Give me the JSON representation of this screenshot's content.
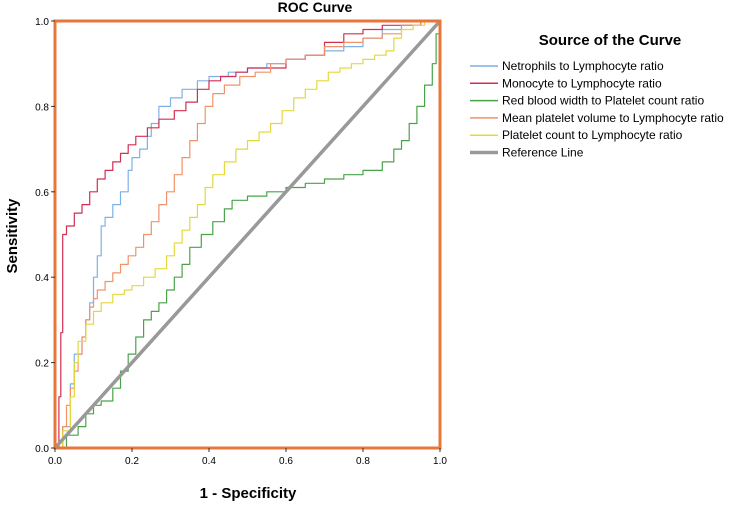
{
  "chart_data": {
    "type": "line",
    "title": "ROC Curve",
    "xlabel": "1 - Specificity",
    "ylabel": "Sensitivity",
    "xlim": [
      0,
      1
    ],
    "ylim": [
      0,
      1
    ],
    "x_ticks": [
      "0.0",
      "0.2",
      "0.4",
      "0.6",
      "0.8",
      "1.0"
    ],
    "y_ticks": [
      "0.0",
      "0.2",
      "0.4",
      "0.6",
      "0.8",
      "1.0"
    ],
    "grid": false,
    "frame_color": "#e8763a",
    "legend": {
      "title": "Source of the Curve",
      "position": "right"
    },
    "series": [
      {
        "name": "Netrophils to Lymphocyte ratio",
        "color": "#7fb0e8",
        "points": [
          [
            0,
            0
          ],
          [
            0.02,
            0.05
          ],
          [
            0.04,
            0.15
          ],
          [
            0.05,
            0.22
          ],
          [
            0.07,
            0.26
          ],
          [
            0.08,
            0.3
          ],
          [
            0.09,
            0.34
          ],
          [
            0.1,
            0.4
          ],
          [
            0.11,
            0.45
          ],
          [
            0.12,
            0.52
          ],
          [
            0.13,
            0.54
          ],
          [
            0.15,
            0.57
          ],
          [
            0.17,
            0.6
          ],
          [
            0.19,
            0.65
          ],
          [
            0.2,
            0.68
          ],
          [
            0.22,
            0.7
          ],
          [
            0.24,
            0.73
          ],
          [
            0.25,
            0.76
          ],
          [
            0.27,
            0.8
          ],
          [
            0.3,
            0.82
          ],
          [
            0.33,
            0.84
          ],
          [
            0.37,
            0.86
          ],
          [
            0.4,
            0.87
          ],
          [
            0.45,
            0.88
          ],
          [
            0.5,
            0.89
          ],
          [
            0.55,
            0.9
          ],
          [
            0.6,
            0.91
          ],
          [
            0.65,
            0.92
          ],
          [
            0.7,
            0.93
          ],
          [
            0.75,
            0.94
          ],
          [
            0.8,
            0.96
          ],
          [
            0.85,
            0.98
          ],
          [
            0.9,
            0.99
          ],
          [
            0.95,
            1.0
          ],
          [
            1,
            1
          ]
        ]
      },
      {
        "name": "Monocyte to Lymphocyte ratio",
        "color": "#d22e52",
        "points": [
          [
            0,
            0
          ],
          [
            0.01,
            0.12
          ],
          [
            0.015,
            0.27
          ],
          [
            0.02,
            0.5
          ],
          [
            0.03,
            0.52
          ],
          [
            0.05,
            0.55
          ],
          [
            0.07,
            0.57
          ],
          [
            0.09,
            0.6
          ],
          [
            0.11,
            0.63
          ],
          [
            0.13,
            0.65
          ],
          [
            0.15,
            0.67
          ],
          [
            0.17,
            0.69
          ],
          [
            0.19,
            0.71
          ],
          [
            0.21,
            0.73
          ],
          [
            0.24,
            0.75
          ],
          [
            0.27,
            0.77
          ],
          [
            0.31,
            0.79
          ],
          [
            0.34,
            0.81
          ],
          [
            0.37,
            0.84
          ],
          [
            0.4,
            0.86
          ],
          [
            0.43,
            0.87
          ],
          [
            0.47,
            0.88
          ],
          [
            0.5,
            0.89
          ],
          [
            0.55,
            0.89
          ],
          [
            0.6,
            0.91
          ],
          [
            0.65,
            0.92
          ],
          [
            0.7,
            0.95
          ],
          [
            0.75,
            0.97
          ],
          [
            0.8,
            0.98
          ],
          [
            0.85,
            0.99
          ],
          [
            0.9,
            0.99
          ],
          [
            0.95,
            1.0
          ],
          [
            1,
            1
          ]
        ]
      },
      {
        "name": "Red blood width to Platelet count ratio",
        "color": "#4aa34a",
        "points": [
          [
            0,
            0
          ],
          [
            0.03,
            0.03
          ],
          [
            0.06,
            0.05
          ],
          [
            0.08,
            0.08
          ],
          [
            0.1,
            0.1
          ],
          [
            0.12,
            0.11
          ],
          [
            0.15,
            0.14
          ],
          [
            0.17,
            0.18
          ],
          [
            0.19,
            0.22
          ],
          [
            0.21,
            0.26
          ],
          [
            0.23,
            0.3
          ],
          [
            0.25,
            0.32
          ],
          [
            0.27,
            0.34
          ],
          [
            0.29,
            0.37
          ],
          [
            0.31,
            0.4
          ],
          [
            0.33,
            0.43
          ],
          [
            0.35,
            0.47
          ],
          [
            0.38,
            0.5
          ],
          [
            0.41,
            0.53
          ],
          [
            0.44,
            0.56
          ],
          [
            0.46,
            0.58
          ],
          [
            0.5,
            0.59
          ],
          [
            0.55,
            0.6
          ],
          [
            0.6,
            0.61
          ],
          [
            0.65,
            0.62
          ],
          [
            0.7,
            0.63
          ],
          [
            0.75,
            0.64
          ],
          [
            0.8,
            0.65
          ],
          [
            0.85,
            0.67
          ],
          [
            0.88,
            0.7
          ],
          [
            0.9,
            0.72
          ],
          [
            0.92,
            0.76
          ],
          [
            0.94,
            0.8
          ],
          [
            0.96,
            0.85
          ],
          [
            0.98,
            0.9
          ],
          [
            0.99,
            0.97
          ],
          [
            1,
            1
          ]
        ]
      },
      {
        "name": "Mean platelet volume to Lymphocyte ratio",
        "color": "#f2926a",
        "points": [
          [
            0,
            0
          ],
          [
            0.02,
            0.05
          ],
          [
            0.03,
            0.1
          ],
          [
            0.04,
            0.14
          ],
          [
            0.05,
            0.18
          ],
          [
            0.06,
            0.22
          ],
          [
            0.07,
            0.26
          ],
          [
            0.08,
            0.3
          ],
          [
            0.09,
            0.33
          ],
          [
            0.1,
            0.35
          ],
          [
            0.11,
            0.37
          ],
          [
            0.13,
            0.39
          ],
          [
            0.15,
            0.41
          ],
          [
            0.17,
            0.43
          ],
          [
            0.19,
            0.45
          ],
          [
            0.21,
            0.47
          ],
          [
            0.23,
            0.5
          ],
          [
            0.25,
            0.53
          ],
          [
            0.27,
            0.57
          ],
          [
            0.29,
            0.6
          ],
          [
            0.31,
            0.64
          ],
          [
            0.33,
            0.68
          ],
          [
            0.35,
            0.72
          ],
          [
            0.37,
            0.76
          ],
          [
            0.39,
            0.8
          ],
          [
            0.41,
            0.83
          ],
          [
            0.44,
            0.85
          ],
          [
            0.48,
            0.87
          ],
          [
            0.52,
            0.88
          ],
          [
            0.56,
            0.9
          ],
          [
            0.6,
            0.91
          ],
          [
            0.65,
            0.92
          ],
          [
            0.7,
            0.94
          ],
          [
            0.75,
            0.95
          ],
          [
            0.8,
            0.96
          ],
          [
            0.85,
            0.97
          ],
          [
            0.9,
            0.99
          ],
          [
            0.95,
            1.0
          ],
          [
            1,
            1
          ]
        ]
      },
      {
        "name": "Platelet count to Lymphocyte ratio",
        "color": "#e3d93c",
        "points": [
          [
            0,
            0
          ],
          [
            0.02,
            0.04
          ],
          [
            0.04,
            0.12
          ],
          [
            0.05,
            0.2
          ],
          [
            0.06,
            0.25
          ],
          [
            0.08,
            0.29
          ],
          [
            0.1,
            0.32
          ],
          [
            0.12,
            0.34
          ],
          [
            0.15,
            0.36
          ],
          [
            0.18,
            0.37
          ],
          [
            0.2,
            0.38
          ],
          [
            0.23,
            0.4
          ],
          [
            0.26,
            0.42
          ],
          [
            0.29,
            0.45
          ],
          [
            0.31,
            0.48
          ],
          [
            0.33,
            0.51
          ],
          [
            0.35,
            0.54
          ],
          [
            0.37,
            0.57
          ],
          [
            0.39,
            0.61
          ],
          [
            0.41,
            0.64
          ],
          [
            0.44,
            0.67
          ],
          [
            0.47,
            0.7
          ],
          [
            0.5,
            0.72
          ],
          [
            0.53,
            0.74
          ],
          [
            0.56,
            0.76
          ],
          [
            0.59,
            0.79
          ],
          [
            0.62,
            0.82
          ],
          [
            0.65,
            0.84
          ],
          [
            0.68,
            0.86
          ],
          [
            0.71,
            0.88
          ],
          [
            0.74,
            0.89
          ],
          [
            0.77,
            0.9
          ],
          [
            0.8,
            0.91
          ],
          [
            0.83,
            0.92
          ],
          [
            0.86,
            0.93
          ],
          [
            0.88,
            0.96
          ],
          [
            0.9,
            0.98
          ],
          [
            0.93,
            0.99
          ],
          [
            0.96,
            1.0
          ],
          [
            1,
            1
          ]
        ]
      },
      {
        "name": "Reference Line",
        "color": "#999999",
        "points": [
          [
            0,
            0
          ],
          [
            1,
            1
          ]
        ]
      }
    ]
  }
}
